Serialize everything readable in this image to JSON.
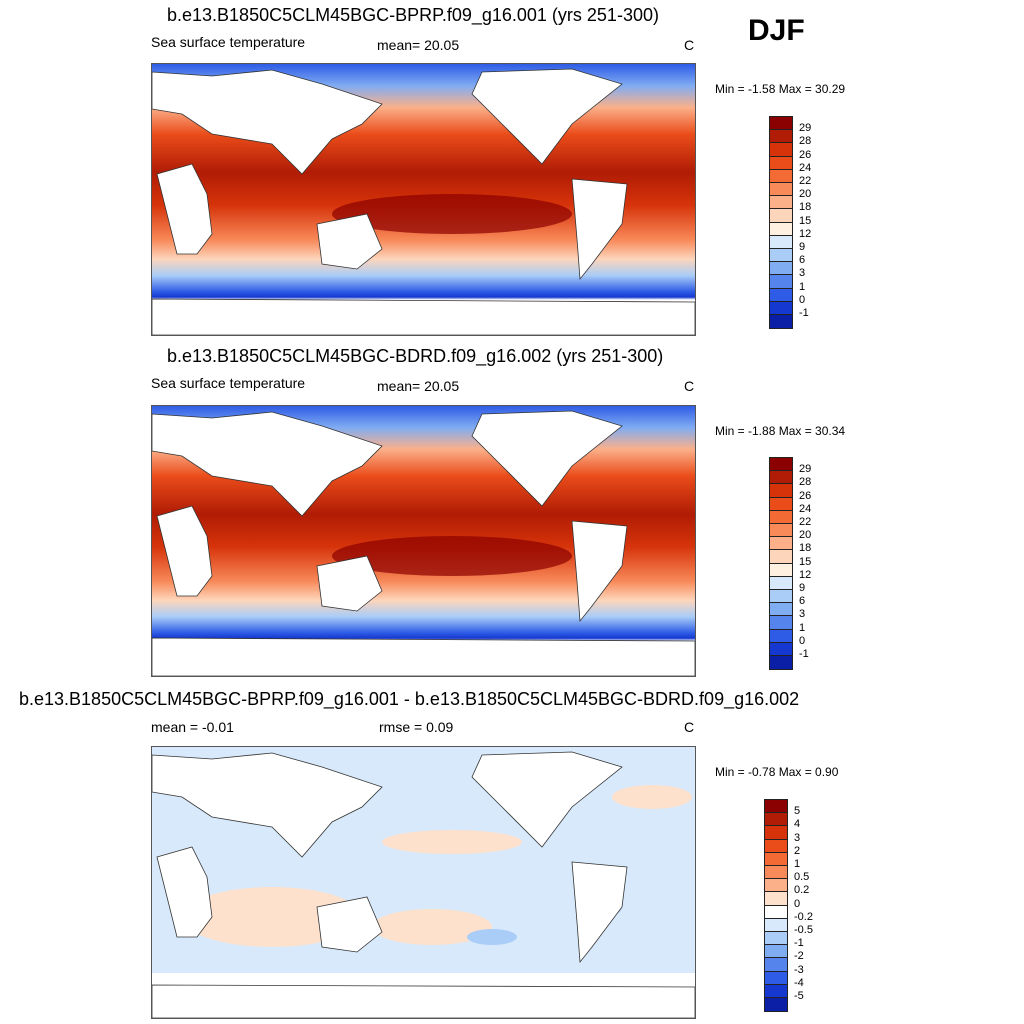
{
  "season": "DJF",
  "panels": [
    {
      "title": "b.e13.B1850C5CLM45BGC-BPRP.f09_g16.001 (yrs 251-300)",
      "left_label": "Sea surface temperature",
      "center_label": "mean=  20.05",
      "units": "C",
      "minmax": "Min =  -1.58 Max =  30.29"
    },
    {
      "title": "b.e13.B1850C5CLM45BGC-BDRD.f09_g16.002 (yrs 251-300)",
      "left_label": "Sea surface temperature",
      "center_label": "mean=  20.05",
      "units": "C",
      "minmax": "Min =  -1.88 Max =  30.34"
    },
    {
      "title": "b.e13.B1850C5CLM45BGC-BPRP.f09_g16.001 - b.e13.B1850C5CLM45BGC-BDRD.f09_g16.002",
      "left_label": "mean =  -0.01",
      "center_label": "rmse =   0.09",
      "units": "C",
      "minmax": "Min =  -0.78 Max =   0.90"
    }
  ],
  "colorbars": {
    "sst": {
      "labels": [
        "29",
        "28",
        "26",
        "24",
        "22",
        "20",
        "18",
        "15",
        "12",
        "9",
        "6",
        "3",
        "1",
        "0",
        "-1"
      ],
      "colors": [
        "#8b0000",
        "#b01c05",
        "#d6330a",
        "#ea4c1a",
        "#f36a35",
        "#f88a5a",
        "#fbb08a",
        "#fdd5bb",
        "#fff0e0",
        "#d7e9fb",
        "#aacdf7",
        "#80acf2",
        "#5585ec",
        "#2e5ce6",
        "#1538d0",
        "#0a1fa6"
      ]
    },
    "diff": {
      "labels": [
        "5",
        "4",
        "3",
        "2",
        "1",
        "0.5",
        "0.2",
        "0",
        "-0.2",
        "-0.5",
        "-1",
        "-2",
        "-3",
        "-4",
        "-5"
      ],
      "colors": [
        "#8b0000",
        "#b01c05",
        "#d6330a",
        "#ea4c1a",
        "#f36a35",
        "#f88a5a",
        "#fbb08a",
        "#fde1cc",
        "#ffffff",
        "#d7e9fb",
        "#aacdf7",
        "#80acf2",
        "#5585ec",
        "#2e5ce6",
        "#1538d0",
        "#0a1fa6"
      ]
    }
  }
}
